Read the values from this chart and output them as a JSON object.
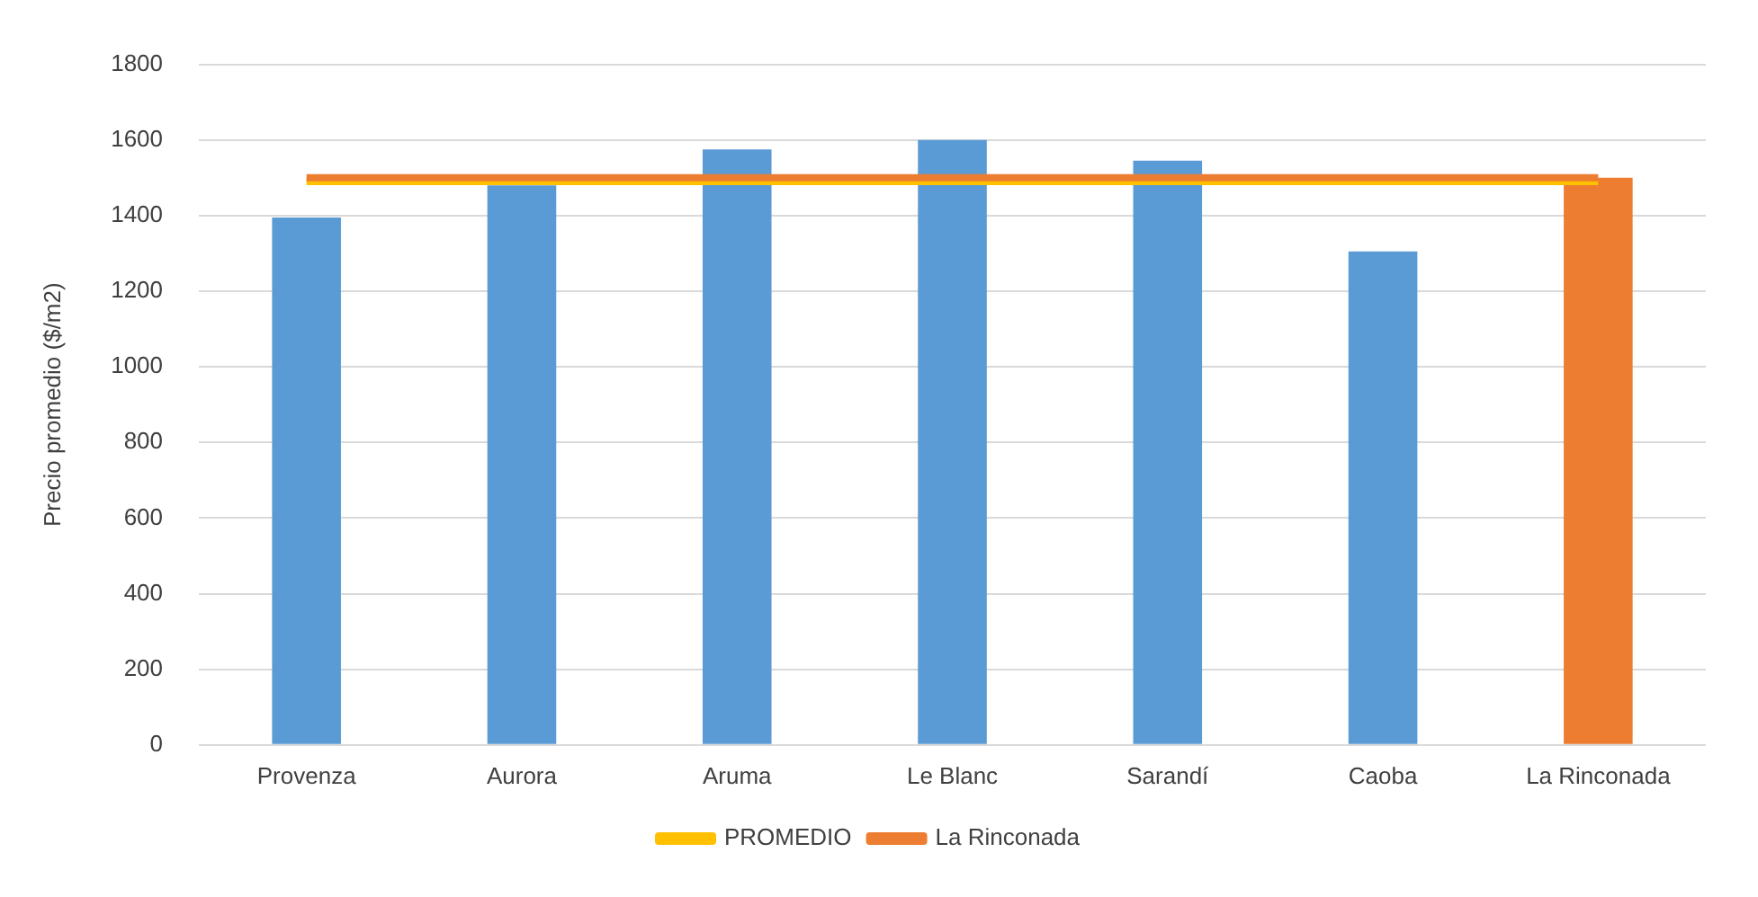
{
  "chart_data": {
    "type": "bar",
    "ylabel": "Precio promedio ($/m2)",
    "categories": [
      "Provenza",
      "Aurora",
      "Aruma",
      "Le Blanc",
      "Sarandí",
      "Caoba",
      "La Rinconada"
    ],
    "series": [
      {
        "values": [
          1395,
          1480,
          1575,
          1600,
          1545,
          1305,
          1500
        ],
        "colors": [
          "#5b9bd5",
          "#5b9bd5",
          "#5b9bd5",
          "#5b9bd5",
          "#5b9bd5",
          "#5b9bd5",
          "#ed7d31"
        ]
      },
      {
        "type": "line",
        "name": "PROMEDIO",
        "color": "#ffc000",
        "values": [
          1490,
          1490,
          1490,
          1490,
          1490,
          1490,
          1490
        ]
      },
      {
        "type": "line",
        "name": "La Rinconada",
        "color": "#ed7d31",
        "values": [
          1500,
          1500,
          1500,
          1500,
          1500,
          1500,
          1500
        ]
      }
    ],
    "ylim": [
      0,
      1800
    ],
    "yticks": [
      0,
      200,
      400,
      600,
      800,
      1000,
      1200,
      1400,
      1600,
      1800
    ],
    "grid": "y",
    "legend": "bottom",
    "marker": "none",
    "line_style": "solid"
  }
}
